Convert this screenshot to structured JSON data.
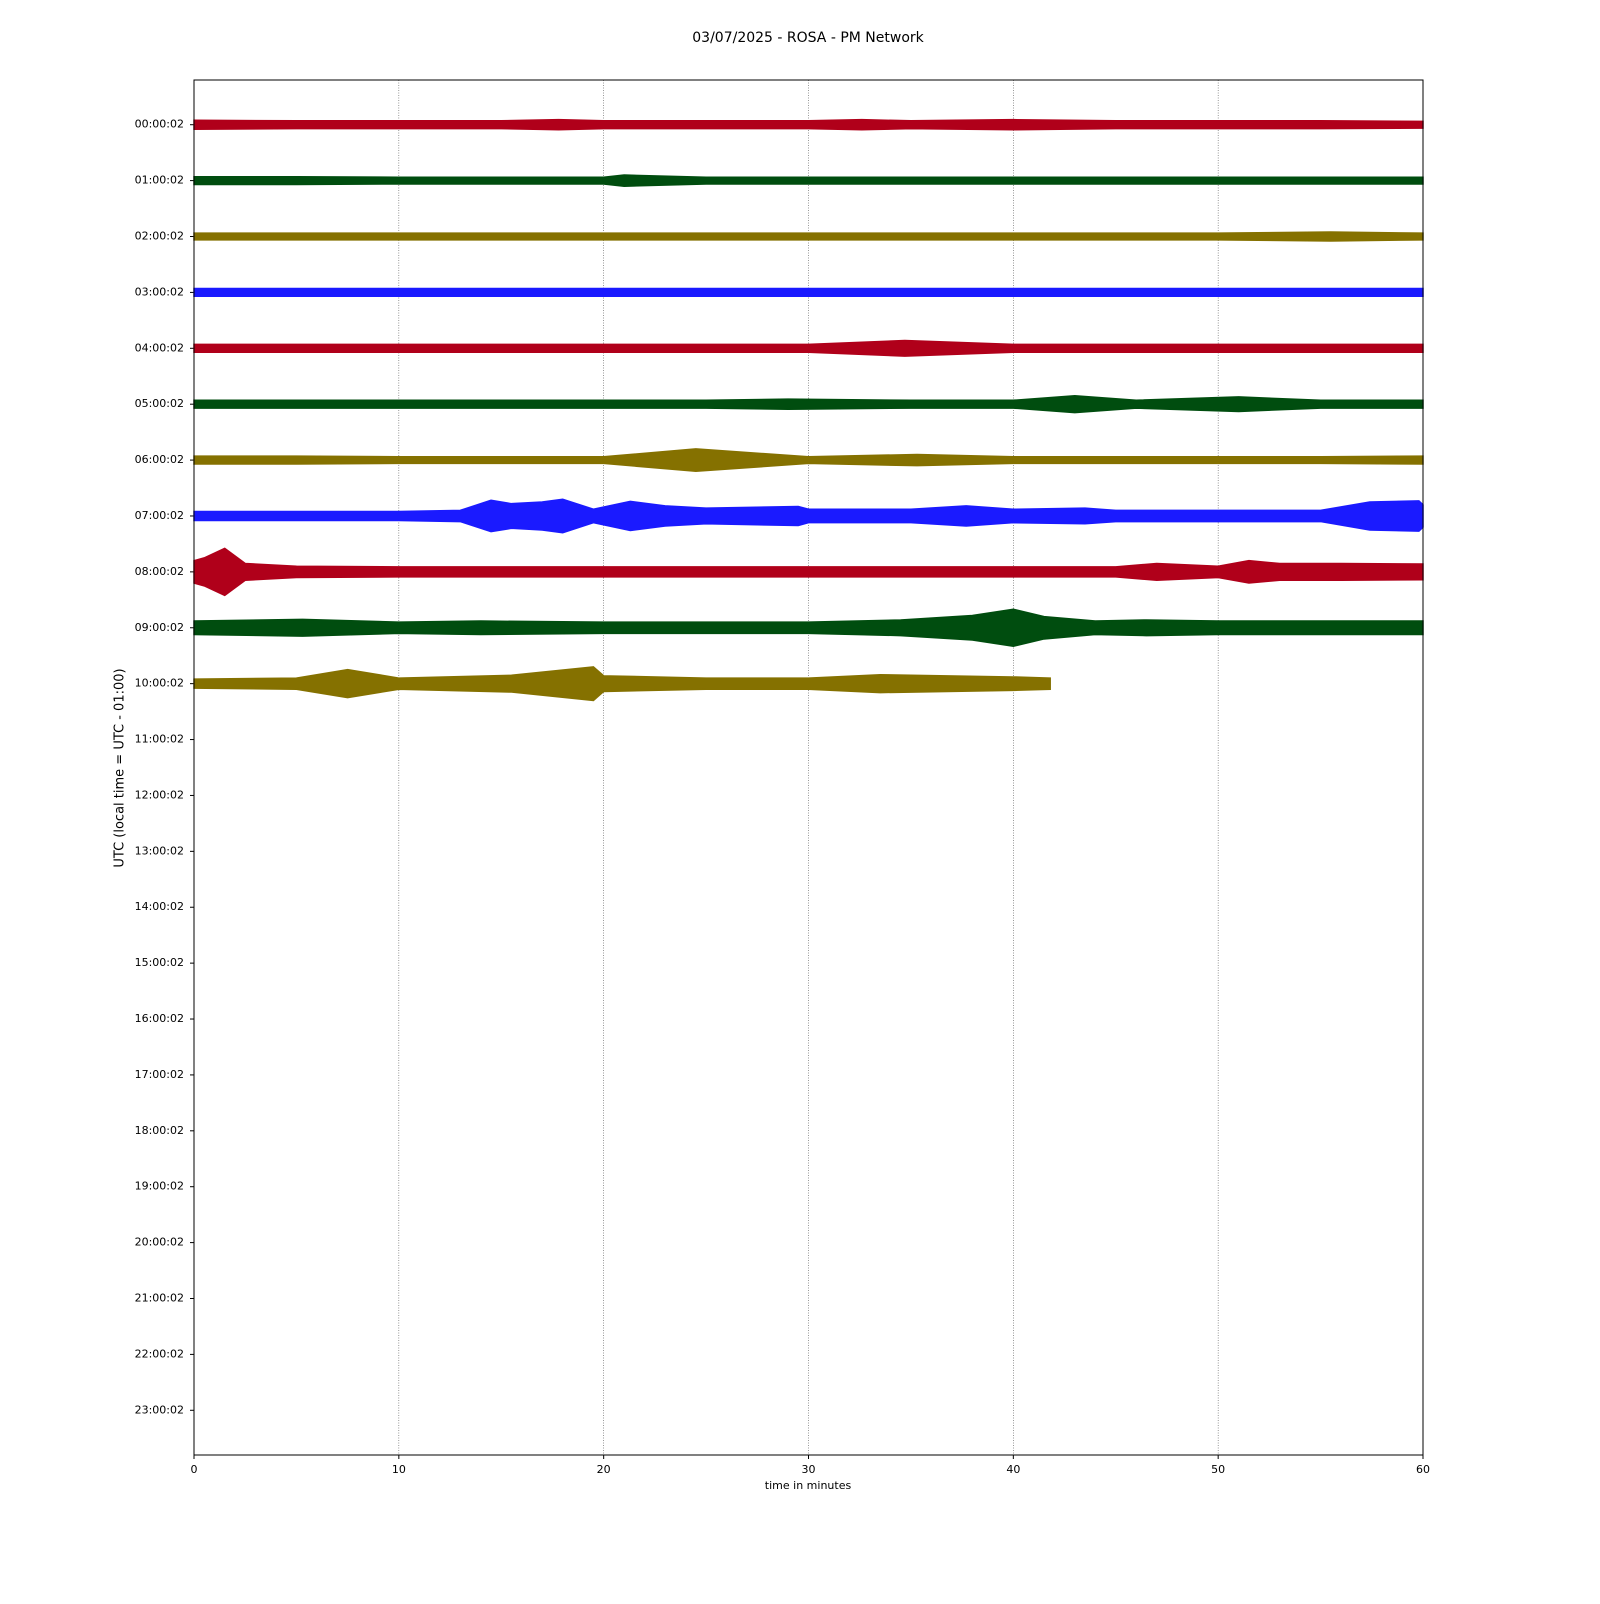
{
  "chart_data": {
    "type": "helicorder",
    "title": "03/07/2025 - ROSA - PM Network",
    "x_label": "time in minutes",
    "y_label": "UTC (local time = UTC - 01:00)",
    "xlim": [
      0,
      60
    ],
    "xticks": [
      0,
      10,
      20,
      30,
      40,
      50,
      60
    ],
    "grid": true,
    "ylim": [
      -0.8,
      23.8
    ],
    "y_inverted": true,
    "yticks": [
      {
        "value": 0,
        "label": "00:00:02"
      },
      {
        "value": 1,
        "label": "01:00:02"
      },
      {
        "value": 2,
        "label": "02:00:02"
      },
      {
        "value": 3,
        "label": "03:00:02"
      },
      {
        "value": 4,
        "label": "04:00:02"
      },
      {
        "value": 5,
        "label": "05:00:02"
      },
      {
        "value": 6,
        "label": "06:00:02"
      },
      {
        "value": 7,
        "label": "07:00:02"
      },
      {
        "value": 8,
        "label": "08:00:02"
      },
      {
        "value": 9,
        "label": "09:00:02"
      },
      {
        "value": 10,
        "label": "10:00:02"
      },
      {
        "value": 11,
        "label": "11:00:02"
      },
      {
        "value": 12,
        "label": "12:00:02"
      },
      {
        "value": 13,
        "label": "13:00:02"
      },
      {
        "value": 14,
        "label": "14:00:02"
      },
      {
        "value": 15,
        "label": "15:00:02"
      },
      {
        "value": 16,
        "label": "16:00:02"
      },
      {
        "value": 17,
        "label": "17:00:02"
      },
      {
        "value": 18,
        "label": "18:00:02"
      },
      {
        "value": 19,
        "label": "19:00:02"
      },
      {
        "value": 20,
        "label": "20:00:02"
      },
      {
        "value": 21,
        "label": "21:00:02"
      },
      {
        "value": 22,
        "label": "22:00:02"
      },
      {
        "value": 23,
        "label": "23:00:02"
      }
    ],
    "series": [
      {
        "row": 0,
        "color": "#b0001a",
        "x": [
          0,
          5,
          10,
          15,
          17.8,
          20,
          25,
          30,
          32.6,
          35,
          40,
          45,
          50,
          55,
          60
        ],
        "values": [
          0.08,
          0.07,
          0.07,
          0.07,
          0.09,
          0.07,
          0.07,
          0.07,
          0.09,
          0.07,
          0.09,
          0.07,
          0.07,
          0.07,
          0.06
        ]
      },
      {
        "row": 1,
        "color": "#004d0f",
        "x": [
          0,
          5,
          10,
          15,
          20,
          21,
          25,
          30,
          35,
          40,
          45,
          50,
          55,
          60
        ],
        "values": [
          0.07,
          0.07,
          0.06,
          0.06,
          0.06,
          0.1,
          0.06,
          0.06,
          0.06,
          0.06,
          0.06,
          0.06,
          0.06,
          0.06
        ]
      },
      {
        "row": 2,
        "color": "#857100",
        "x": [
          0,
          5,
          10,
          15,
          20,
          25,
          30,
          35,
          40,
          45,
          50,
          55.5,
          60
        ],
        "values": [
          0.06,
          0.06,
          0.06,
          0.06,
          0.06,
          0.06,
          0.06,
          0.06,
          0.06,
          0.06,
          0.06,
          0.08,
          0.06
        ]
      },
      {
        "row": 3,
        "color": "#1a1aff",
        "x": [
          0,
          5,
          10,
          15,
          20,
          25,
          30,
          35,
          40,
          45,
          50,
          55,
          60
        ],
        "values": [
          0.07,
          0.07,
          0.07,
          0.07,
          0.07,
          0.07,
          0.07,
          0.07,
          0.07,
          0.07,
          0.07,
          0.07,
          0.07
        ]
      },
      {
        "row": 4,
        "color": "#b0001a",
        "x": [
          0,
          5,
          10,
          15,
          20,
          25,
          30,
          34.7,
          40,
          45,
          50,
          55,
          60
        ],
        "values": [
          0.07,
          0.07,
          0.07,
          0.07,
          0.07,
          0.07,
          0.07,
          0.14,
          0.07,
          0.07,
          0.07,
          0.07,
          0.07
        ]
      },
      {
        "row": 5,
        "color": "#004d0f",
        "x": [
          0,
          5,
          10,
          15,
          20,
          25,
          29,
          35,
          40,
          43,
          46,
          51,
          55,
          60
        ],
        "values": [
          0.07,
          0.07,
          0.07,
          0.07,
          0.07,
          0.07,
          0.09,
          0.07,
          0.07,
          0.15,
          0.07,
          0.13,
          0.07,
          0.07
        ]
      },
      {
        "row": 6,
        "color": "#857100",
        "x": [
          0,
          5,
          10,
          15,
          20,
          24.5,
          30,
          35.3,
          40,
          45,
          50,
          55,
          60
        ],
        "values": [
          0.07,
          0.07,
          0.06,
          0.06,
          0.06,
          0.2,
          0.06,
          0.1,
          0.06,
          0.06,
          0.06,
          0.06,
          0.07
        ]
      },
      {
        "row": 7,
        "color": "#1a1aff",
        "x": [
          0,
          5,
          10,
          13,
          14.5,
          15.5,
          17,
          18,
          19.5,
          21.3,
          23,
          25,
          29.5,
          30,
          35,
          37.7,
          40,
          43.5,
          45,
          50,
          55,
          57.4,
          59.8,
          60
        ],
        "values": [
          0.08,
          0.08,
          0.08,
          0.1,
          0.28,
          0.22,
          0.25,
          0.3,
          0.12,
          0.26,
          0.18,
          0.14,
          0.17,
          0.12,
          0.12,
          0.18,
          0.12,
          0.14,
          0.1,
          0.1,
          0.1,
          0.25,
          0.27,
          0.2
        ]
      },
      {
        "row": 8,
        "color": "#b0001a",
        "x": [
          0,
          0.5,
          1.5,
          2.5,
          5,
          10,
          15,
          20,
          25,
          30,
          35,
          40,
          45,
          47,
          50,
          51.5,
          53,
          56,
          60
        ],
        "values": [
          0.2,
          0.25,
          0.42,
          0.15,
          0.1,
          0.09,
          0.09,
          0.09,
          0.09,
          0.09,
          0.09,
          0.09,
          0.09,
          0.15,
          0.1,
          0.2,
          0.15,
          0.15,
          0.14
        ]
      },
      {
        "row": 9,
        "color": "#004d0f",
        "x": [
          0,
          5.3,
          10,
          14,
          20,
          25,
          30,
          34.5,
          38,
          40,
          41.5,
          44,
          46.5,
          50,
          55,
          60
        ],
        "values": [
          0.12,
          0.15,
          0.1,
          0.12,
          0.1,
          0.1,
          0.1,
          0.14,
          0.22,
          0.33,
          0.2,
          0.12,
          0.14,
          0.12,
          0.12,
          0.12
        ]
      },
      {
        "row": 10,
        "color": "#857100",
        "x": [
          0,
          5,
          7.5,
          10,
          15.5,
          19.5,
          20,
          25,
          30,
          33.5,
          40,
          41.8
        ],
        "values": [
          0.08,
          0.1,
          0.25,
          0.1,
          0.15,
          0.3,
          0.14,
          0.1,
          0.1,
          0.16,
          0.12,
          0.1
        ]
      }
    ]
  }
}
